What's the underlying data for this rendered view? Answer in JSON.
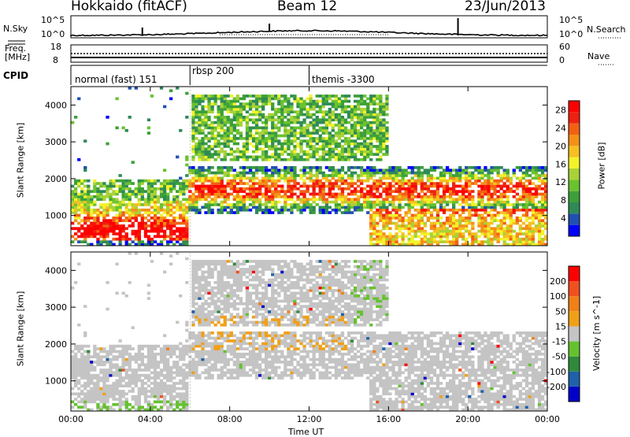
{
  "header": {
    "station": "Hokkaido (fitACF)",
    "beam": "Beam 12",
    "date": "23/Jun/2013"
  },
  "summary_labels": {
    "nsky": "N.Sky",
    "nsearch": "N.Search",
    "freq_line1": "Freq.",
    "freq_line2": "[MHz]",
    "nave": "Nave",
    "cpid": "CPID",
    "noise_high": "10^5",
    "noise_low": "10^0",
    "freq_high": "18",
    "freq_low": "8",
    "nave_high": "60",
    "nave_low": "0"
  },
  "cpid_segments": [
    {
      "label": "normal (fast) 151",
      "start_hour": 0,
      "end_hour": 6
    },
    {
      "label": "rbsp 200",
      "start_hour": 6,
      "end_hour": 12
    },
    {
      "label": "themis -3300",
      "start_hour": 12,
      "end_hour": 24
    }
  ],
  "chart_data": [
    {
      "type": "heatmap",
      "title": "Power",
      "xlabel": "Time UT",
      "ylabel": "Slant Range [km]",
      "xlim": [
        0,
        24
      ],
      "ylim": [
        180,
        4500
      ],
      "x_ticks": [
        "00:00",
        "04:00",
        "08:00",
        "12:00",
        "16:00",
        "20:00",
        "00:00"
      ],
      "y_ticks": [
        "1000",
        "2000",
        "3000",
        "4000"
      ],
      "y_tick_values": [
        1000,
        2000,
        3000,
        4000
      ],
      "colorbar_label": "Power [dB]",
      "colorbar_ticks": [
        "4",
        "8",
        "12",
        "16",
        "20",
        "24",
        "28"
      ],
      "colorbar_range": [
        0,
        30
      ],
      "colors": [
        "#0000ff",
        "#2050b0",
        "#2f8a58",
        "#3ca038",
        "#6ac22f",
        "#a8d238",
        "#f3f32a",
        "#f5c020",
        "#f39018",
        "#f36014",
        "#ee2010",
        "#ff0000"
      ],
      "note": "scatter echoes; strongest returns 1000-2500 km from 06:00 to 24:00"
    },
    {
      "type": "heatmap",
      "title": "Velocity",
      "xlabel": "Time UT",
      "ylabel": "Slant Range [km]",
      "xlim": [
        0,
        24
      ],
      "ylim": [
        180,
        4500
      ],
      "x_ticks": [
        "00:00",
        "04:00",
        "08:00",
        "12:00",
        "16:00",
        "20:00",
        "00:00"
      ],
      "y_ticks": [
        "1000",
        "2000",
        "3000",
        "4000"
      ],
      "y_tick_values": [
        1000,
        2000,
        3000,
        4000
      ],
      "colorbar_label": "Velocity [m s^-1]",
      "colorbar_ticks": [
        "200",
        "100",
        "50",
        "15",
        "-15",
        "-50",
        "-100",
        "-200"
      ],
      "colors": [
        "#0000c8",
        "#2060a8",
        "#2f8a3c",
        "#65c22f",
        "#c4c4c4",
        "#f0a018",
        "#f08018",
        "#f05020",
        "#ff0000"
      ],
      "note": "mostly ground scatter (grey) with some orange and green echoes"
    }
  ]
}
